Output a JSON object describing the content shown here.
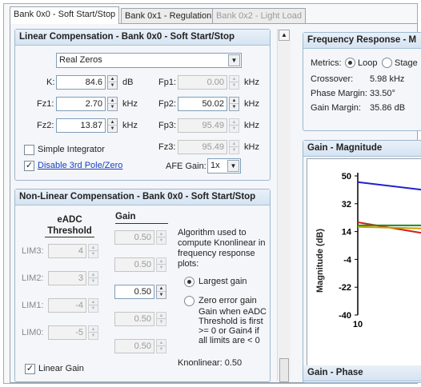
{
  "tabs": [
    {
      "label": "Bank 0x0 - Soft Start/Stop",
      "state": "active"
    },
    {
      "label": "Bank 0x1 - Regulation",
      "state": "normal"
    },
    {
      "label": "Bank 0x2 - Light Load",
      "state": "disabled"
    }
  ],
  "linear": {
    "title": "Linear Compensation - Bank 0x0 - Soft Start/Stop",
    "mode": "Real Zeros",
    "fields": {
      "k": {
        "label": "K:",
        "value": "84.6",
        "unit": "dB"
      },
      "fz1": {
        "label": "Fz1:",
        "value": "2.70",
        "unit": "kHz"
      },
      "fz2": {
        "label": "Fz2:",
        "value": "13.87",
        "unit": "kHz"
      },
      "fp1": {
        "label": "Fp1:",
        "value": "0.00",
        "unit": "kHz"
      },
      "fp2": {
        "label": "Fp2:",
        "value": "50.02",
        "unit": "kHz"
      },
      "fp3": {
        "label": "Fp3:",
        "value": "95.49",
        "unit": "kHz"
      },
      "fz3": {
        "label": "Fz3:",
        "value": "95.49",
        "unit": "kHz"
      }
    },
    "simple_integrator": {
      "label": "Simple Integrator",
      "checked": false
    },
    "disable_3rd": {
      "label": "Disable 3rd Pole/Zero",
      "checked": true
    },
    "afe_gain": {
      "label": "AFE Gain:",
      "value": "1x"
    }
  },
  "nonlinear": {
    "title": "Non-Linear Compensation - Bank 0x0 - Soft Start/Stop",
    "col_threshold": "eADC Threshold",
    "col_gain": "Gain",
    "rows": [
      {
        "label": "LIM3:",
        "threshold": "4"
      },
      {
        "label": "LIM2:",
        "threshold": "3"
      },
      {
        "label": "LIM1:",
        "threshold": "-4"
      },
      {
        "label": "LIM0:",
        "threshold": "-5"
      }
    ],
    "gains": [
      "0.50",
      "0.50",
      "0.50",
      "0.50",
      "0.50"
    ],
    "description": "Algorithm used to compute Knonlinear in frequency response plots:",
    "opt_largest": "Largest gain",
    "opt_zero_error": "Zero error gain",
    "zero_error_desc": "Gain when eADC Threshold is first >= 0 or Gain4 if all limits are < 0",
    "linear_gain": {
      "label": "Linear Gain",
      "checked": true
    },
    "knonlinear": "Knonlinear:  0.50"
  },
  "freq_response": {
    "title": "Frequency Response - M",
    "metrics_label": "Metrics:",
    "opt_loop": "Loop",
    "opt_stage": "Stage",
    "crossover_label": "Crossover:",
    "crossover_value": "5.98 kHz",
    "phase_margin_label": "Phase Margin:",
    "phase_margin_value": "33.50°",
    "gain_margin_label": "Gain Margin:",
    "gain_margin_value": "35.86 dB"
  },
  "chart_data": {
    "type": "line",
    "title": "Gain - Magnitude",
    "ylabel": "Magnitude (dB)",
    "xlabel": "",
    "yticks": [
      "50",
      "32",
      "14",
      "-4",
      "-22",
      "-40"
    ],
    "xticks": [
      "10"
    ],
    "ylim": [
      -40,
      50
    ],
    "series": [
      {
        "color": "#2020d0",
        "x": [
          10,
          17
        ],
        "y": [
          46,
          41
        ]
      },
      {
        "color": "#d02020",
        "x": [
          10,
          17
        ],
        "y": [
          20,
          13
        ]
      },
      {
        "color": "#208a20",
        "x": [
          10,
          17
        ],
        "y": [
          18,
          18
        ]
      },
      {
        "color": "#c8a000",
        "x": [
          10,
          17
        ],
        "y": [
          17,
          16
        ]
      }
    ]
  },
  "next_panel_title": "Gain - Phase",
  "colors": {
    "accent": "#1a3fbf",
    "group_border": "#9db7cf"
  }
}
